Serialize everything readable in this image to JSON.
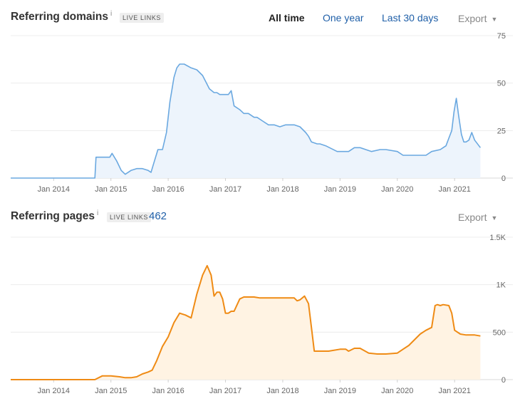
{
  "sections": {
    "domains": {
      "title": "Referring domains",
      "info": "i",
      "badge": "LIVE LINKS",
      "tabs": [
        "All time",
        "One year",
        "Last 30 days"
      ],
      "export": "Export"
    },
    "pages": {
      "title": "Referring pages",
      "info": "i",
      "badge": "LIVE LINKS",
      "count": "462",
      "export": "Export"
    }
  },
  "chart_data": [
    {
      "type": "area",
      "title": "Referring domains",
      "color": "#6aa8e0",
      "fill": "#edf4fc",
      "x_unit": "year",
      "xlim": [
        2013.25,
        2021.52
      ],
      "ylim": [
        0,
        75
      ],
      "y_ticks": [
        0,
        25,
        50,
        75
      ],
      "y_tick_labels": [
        "0",
        "25",
        "50",
        "75"
      ],
      "x_ticks": [
        2014,
        2015,
        2016,
        2017,
        2018,
        2019,
        2020,
        2021
      ],
      "x_tick_labels": [
        "Jan 2014",
        "Jan 2015",
        "Jan 2016",
        "Jan 2017",
        "Jan 2018",
        "Jan 2019",
        "Jan 2020",
        "Jan 2021"
      ],
      "grid": true,
      "series": [
        {
          "x": [
            2013.25,
            2014.72,
            2014.74,
            2014.98,
            2015.02,
            2015.1,
            2015.18,
            2015.25,
            2015.35,
            2015.45,
            2015.55,
            2015.65,
            2015.7,
            2015.75,
            2015.82,
            2015.9,
            2015.97,
            2016.03,
            2016.1,
            2016.15,
            2016.2,
            2016.28,
            2016.4,
            2016.5,
            2016.6,
            2016.72,
            2016.8,
            2016.85,
            2016.9,
            2017.05,
            2017.1,
            2017.15,
            2017.25,
            2017.32,
            2017.4,
            2017.5,
            2017.55,
            2017.65,
            2017.75,
            2017.85,
            2017.95,
            2018.05,
            2018.2,
            2018.3,
            2018.4,
            2018.45,
            2018.5,
            2018.6,
            2018.65,
            2018.75,
            2018.95,
            2019.0,
            2019.15,
            2019.25,
            2019.35,
            2019.45,
            2019.55,
            2019.7,
            2019.8,
            2020.0,
            2020.1,
            2020.2,
            2020.35,
            2020.5,
            2020.6,
            2020.75,
            2020.8,
            2020.85,
            2020.9,
            2020.95,
            2020.99,
            2021.03,
            2021.07,
            2021.12,
            2021.16,
            2021.2,
            2021.25,
            2021.3,
            2021.35,
            2021.45
          ],
          "y": [
            0,
            0,
            11,
            11,
            13,
            9,
            4,
            2,
            4,
            5,
            5,
            4,
            3,
            8,
            15,
            15,
            24,
            40,
            53,
            58,
            60,
            60,
            58,
            57,
            54,
            47,
            45,
            45,
            44,
            44,
            46,
            38,
            36,
            34,
            34,
            32,
            32,
            30,
            28,
            28,
            27,
            28,
            28,
            27,
            24,
            22,
            19,
            18,
            18,
            17,
            14,
            14,
            14,
            16,
            16,
            15,
            14,
            15,
            15,
            14,
            12,
            12,
            12,
            12,
            14,
            15,
            16,
            17,
            21,
            25,
            35,
            42,
            33,
            23,
            19,
            19,
            20,
            24,
            20,
            16
          ]
        }
      ]
    },
    {
      "type": "area",
      "title": "Referring pages",
      "color": "#ef8b15",
      "fill": "#fff3e3",
      "x_unit": "year",
      "xlim": [
        2013.25,
        2021.52
      ],
      "ylim": [
        0,
        1500
      ],
      "y_ticks": [
        0,
        500,
        1000,
        1500
      ],
      "y_tick_labels": [
        "0",
        "500",
        "1K",
        "1.5K"
      ],
      "x_ticks": [
        2014,
        2015,
        2016,
        2017,
        2018,
        2019,
        2020,
        2021
      ],
      "x_tick_labels": [
        "Jan 2014",
        "Jan 2015",
        "Jan 2016",
        "Jan 2017",
        "Jan 2018",
        "Jan 2019",
        "Jan 2020",
        "Jan 2021"
      ],
      "grid": true,
      "series": [
        {
          "x": [
            2013.25,
            2014.72,
            2014.85,
            2015.0,
            2015.15,
            2015.25,
            2015.35,
            2015.45,
            2015.55,
            2015.65,
            2015.72,
            2015.8,
            2015.9,
            2016.0,
            2016.1,
            2016.2,
            2016.3,
            2016.4,
            2016.5,
            2016.6,
            2016.68,
            2016.75,
            2016.8,
            2016.85,
            2016.9,
            2016.95,
            2017.0,
            2017.05,
            2017.1,
            2017.15,
            2017.25,
            2017.32,
            2017.4,
            2017.5,
            2017.6,
            2017.8,
            2018.0,
            2018.2,
            2018.25,
            2018.3,
            2018.38,
            2018.45,
            2018.5,
            2018.55,
            2018.65,
            2018.8,
            2019.0,
            2019.1,
            2019.15,
            2019.25,
            2019.35,
            2019.5,
            2019.65,
            2019.8,
            2020.0,
            2020.1,
            2020.2,
            2020.3,
            2020.4,
            2020.5,
            2020.6,
            2020.66,
            2020.7,
            2020.75,
            2020.8,
            2020.9,
            2020.95,
            2021.0,
            2021.1,
            2021.2,
            2021.35,
            2021.45
          ],
          "y": [
            0,
            0,
            40,
            40,
            30,
            20,
            20,
            30,
            60,
            80,
            100,
            200,
            350,
            450,
            600,
            700,
            680,
            650,
            900,
            1100,
            1200,
            1100,
            880,
            920,
            920,
            850,
            700,
            700,
            720,
            720,
            850,
            870,
            870,
            870,
            860,
            860,
            860,
            860,
            830,
            840,
            880,
            800,
            550,
            300,
            300,
            300,
            320,
            320,
            300,
            330,
            330,
            280,
            270,
            270,
            280,
            320,
            360,
            420,
            480,
            520,
            550,
            780,
            790,
            780,
            790,
            780,
            700,
            520,
            480,
            470,
            470,
            460
          ]
        }
      ]
    }
  ]
}
